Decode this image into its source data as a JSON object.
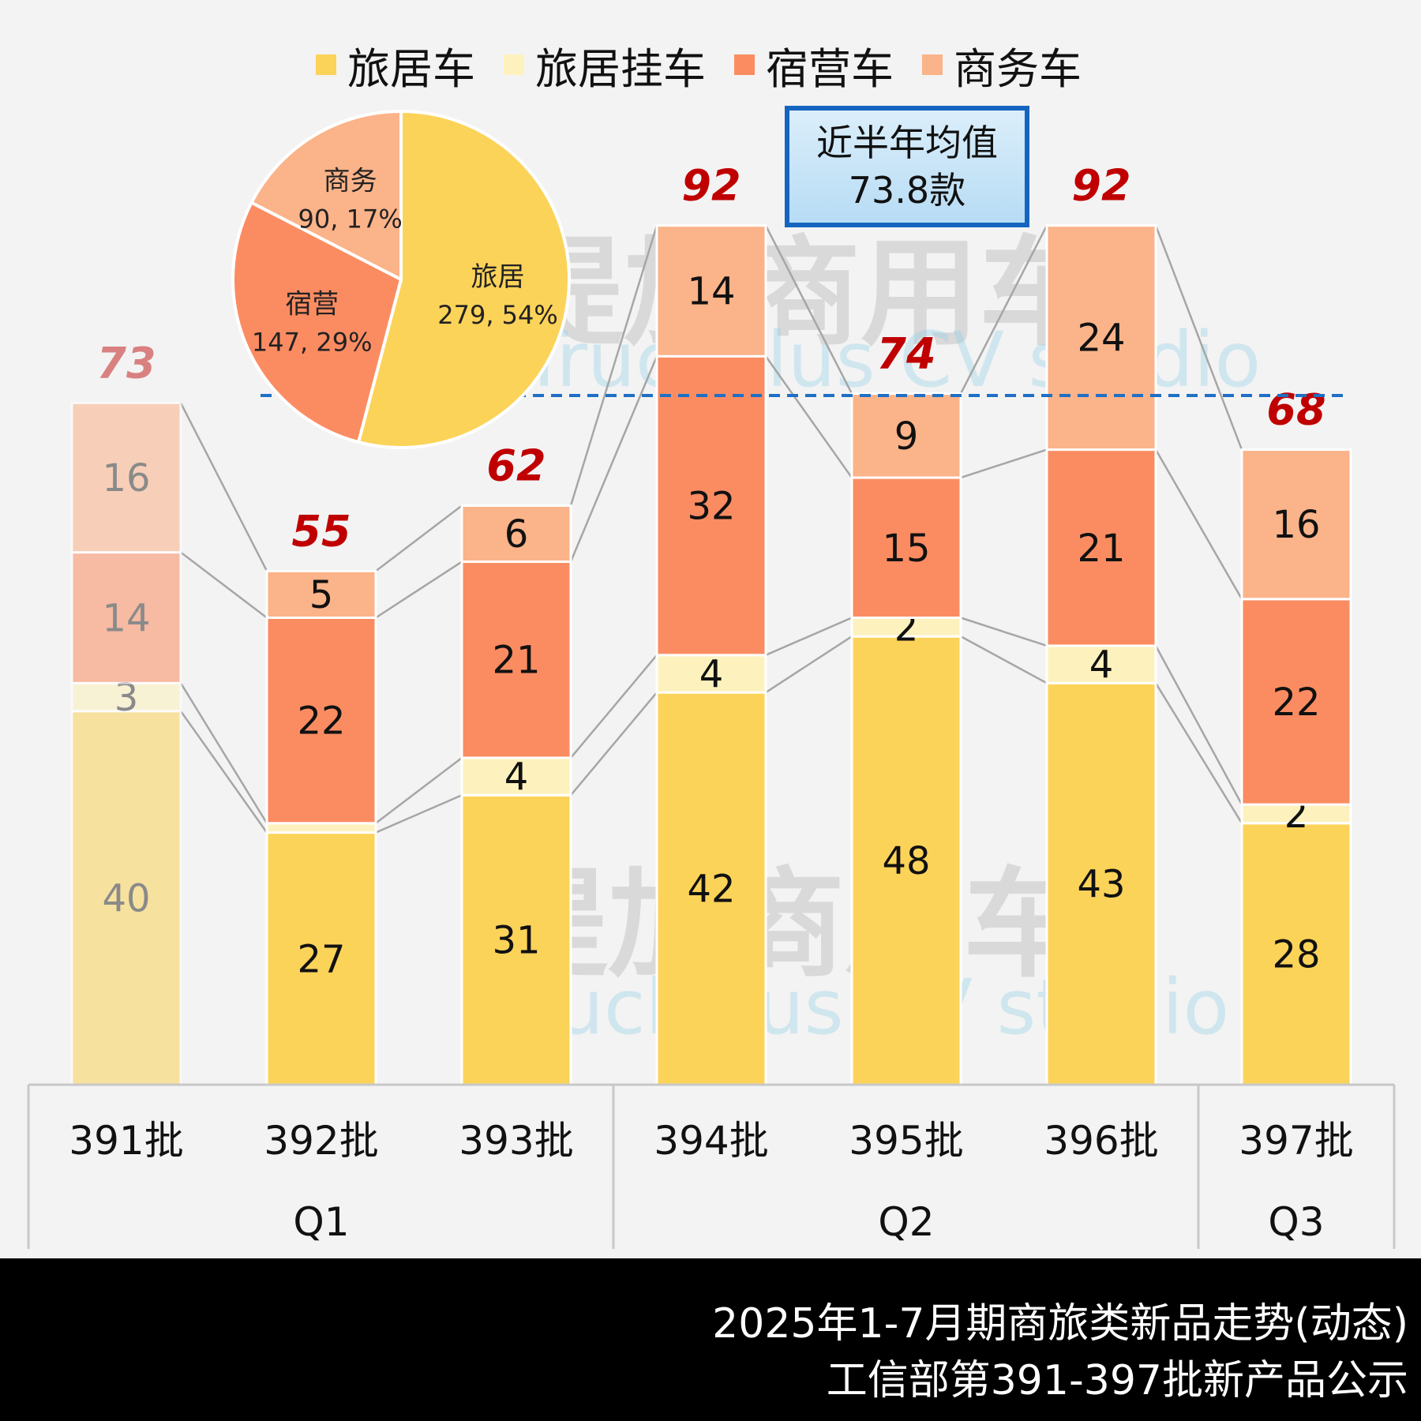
{
  "legend": {
    "items": [
      {
        "label": "旅居车",
        "color": "#fcd359"
      },
      {
        "label": "旅居挂车",
        "color": "#fdf2be"
      },
      {
        "label": "宿营车",
        "color": "#fb8c62"
      },
      {
        "label": "商务车",
        "color": "#fbb389"
      }
    ]
  },
  "average_box": {
    "line1": "近半年均值",
    "line2": "73.8款"
  },
  "watermark": {
    "cn": "提加商用车",
    "en": "TruckPlus CV studio"
  },
  "footer": {
    "line1": "2025年1-7月期商旅类新品走势(动态)",
    "line2": "工信部第391-397批新产品公示"
  },
  "chart_data": [
    {
      "type": "bar",
      "stacked": true,
      "categories": [
        "391批",
        "392批",
        "393批",
        "394批",
        "395批",
        "396批",
        "397批"
      ],
      "groups": [
        {
          "label": "Q1",
          "categories": [
            "391批",
            "392批",
            "393批"
          ]
        },
        {
          "label": "Q2",
          "categories": [
            "394批",
            "395批",
            "396批"
          ]
        },
        {
          "label": "Q3",
          "categories": [
            "397批"
          ]
        }
      ],
      "series": [
        {
          "name": "旅居车",
          "color": "#fcd359",
          "values": [
            40,
            27,
            31,
            42,
            48,
            43,
            28
          ]
        },
        {
          "name": "旅居挂车",
          "color": "#fdf2be",
          "values": [
            3,
            1,
            4,
            4,
            2,
            4,
            2
          ]
        },
        {
          "name": "宿营车",
          "color": "#fb8c62",
          "values": [
            14,
            22,
            21,
            32,
            15,
            21,
            22
          ]
        },
        {
          "name": "商务车",
          "color": "#fbb389",
          "values": [
            16,
            5,
            6,
            14,
            9,
            24,
            16
          ]
        }
      ],
      "totals": [
        73,
        55,
        62,
        92,
        74,
        92,
        68
      ],
      "average_line": 73.8,
      "ylim": [
        0,
        95
      ],
      "faded_categories": [
        "391批"
      ],
      "connector_lines": true,
      "legend_position": "top"
    },
    {
      "type": "pie",
      "slices": [
        {
          "label": "旅居",
          "value": 279,
          "percent": "54%",
          "color": "#fcd359"
        },
        {
          "label": "宿营",
          "value": 147,
          "percent": "29%",
          "color": "#fb8c62"
        },
        {
          "label": "商务",
          "value": 90,
          "percent": "17%",
          "color": "#fbb389"
        }
      ]
    }
  ]
}
